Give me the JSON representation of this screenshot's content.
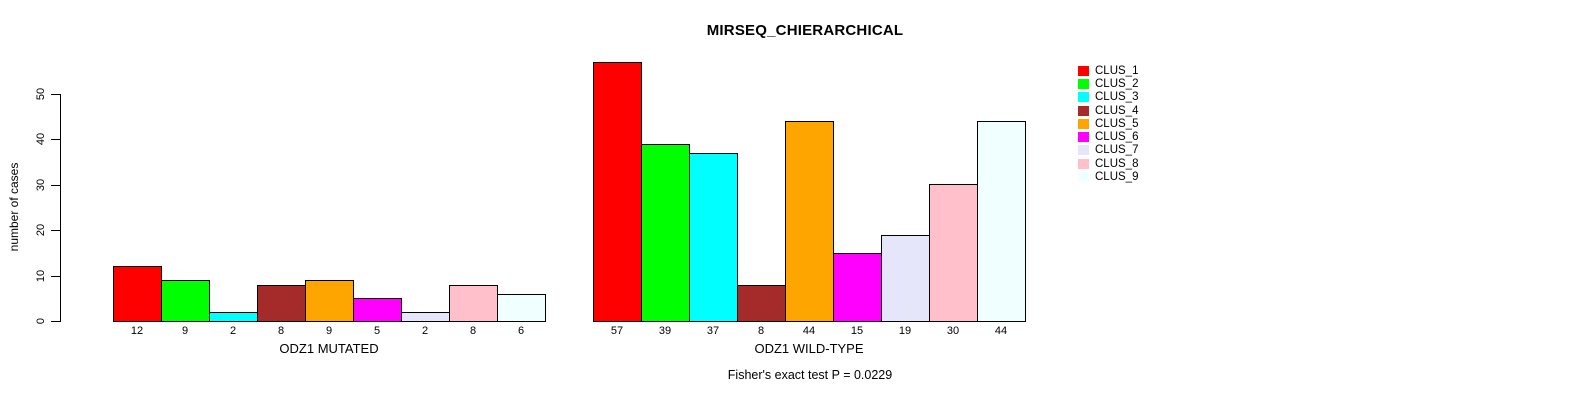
{
  "chart_data": {
    "type": "bar",
    "title": "MIRSEQ_CHIERARCHICAL",
    "ylabel": "number of cases",
    "ylim": [
      0,
      50
    ],
    "yticks": [
      0,
      10,
      20,
      30,
      40,
      50
    ],
    "grid": false,
    "legend_position": "right",
    "categories": [
      "CLUS_1",
      "CLUS_2",
      "CLUS_3",
      "CLUS_4",
      "CLUS_5",
      "CLUS_6",
      "CLUS_7",
      "CLUS_8",
      "CLUS_9"
    ],
    "colors": [
      "#FF0000",
      "#00FF00",
      "#00FFFF",
      "#A52A2A",
      "#FFA500",
      "#FF00FF",
      "#E6E6FA",
      "#FFC0CB",
      "#F0FFFF"
    ],
    "bar_border_color": "#000000",
    "panels": [
      {
        "xlabel": "ODZ1 MUTATED",
        "values": [
          12,
          9,
          2,
          8,
          9,
          5,
          2,
          8,
          6
        ]
      },
      {
        "xlabel": "ODZ1 WILD-TYPE",
        "values": [
          57,
          39,
          37,
          8,
          44,
          15,
          19,
          30,
          44
        ]
      }
    ],
    "annotation": "Fisher's exact test P = 0.0229"
  },
  "legend": {
    "items": [
      {
        "label": "CLUS_1",
        "color": "#FF0000"
      },
      {
        "label": "CLUS_2",
        "color": "#00FF00"
      },
      {
        "label": "CLUS_3",
        "color": "#00FFFF"
      },
      {
        "label": "CLUS_4",
        "color": "#A52A2A"
      },
      {
        "label": "CLUS_5",
        "color": "#FFA500"
      },
      {
        "label": "CLUS_6",
        "color": "#FF00FF"
      },
      {
        "label": "CLUS_7",
        "color": "#E6E6FA"
      },
      {
        "label": "CLUS_8",
        "color": "#FFC0CB"
      },
      {
        "label": "CLUS_9",
        "color": "#F0FFFF"
      }
    ]
  }
}
